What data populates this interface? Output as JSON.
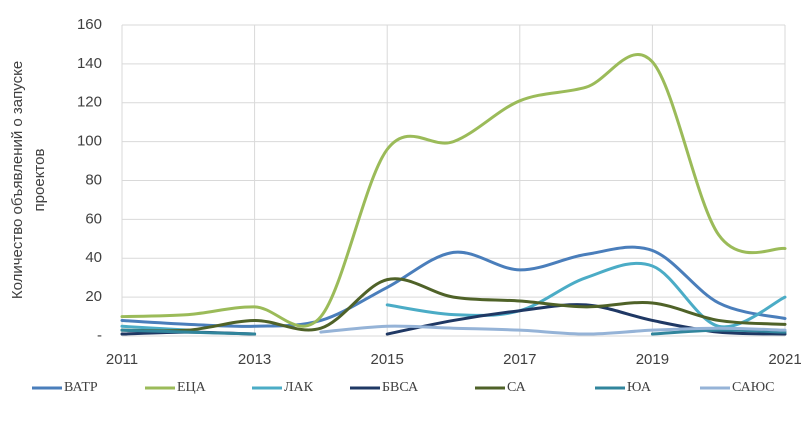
{
  "chart_data": {
    "type": "line",
    "ylabel": [
      "Количество объявлений о запуске",
      "проектов"
    ],
    "x": [
      2011,
      2012,
      2013,
      2014,
      2015,
      2016,
      2017,
      2018,
      2019,
      2020,
      2021
    ],
    "xlim": [
      2011,
      2021
    ],
    "xticks": [
      2011,
      2013,
      2015,
      2017,
      2019,
      2021
    ],
    "ylim": [
      0,
      160
    ],
    "yticks": [
      {
        "value": 0,
        "label": "-"
      },
      20,
      40,
      60,
      80,
      100,
      120,
      140,
      160
    ],
    "grid": true,
    "legend": "bottom",
    "series": [
      {
        "name": "ВАТР",
        "color": "#4a7ebb",
        "values": [
          8,
          6,
          5,
          8,
          25,
          43,
          34,
          42,
          44,
          17,
          9
        ]
      },
      {
        "name": "ЕЦА",
        "color": "#9bbb59",
        "values": [
          10,
          11,
          15,
          10,
          96,
          100,
          121,
          128,
          141,
          52,
          45
        ]
      },
      {
        "name": "ЛАК",
        "color": "#4bacc6",
        "values": [
          5,
          3,
          null,
          null,
          16,
          11,
          13,
          30,
          36,
          5,
          20
        ]
      },
      {
        "name": "БВСА",
        "color": "#1f3864",
        "values": [
          1,
          2,
          1,
          null,
          1,
          8,
          13,
          16,
          8,
          2,
          1
        ]
      },
      {
        "name": "СА",
        "color": "#4f6228",
        "values": [
          3,
          3,
          8,
          4,
          29,
          20,
          18,
          15,
          17,
          8,
          6
        ]
      },
      {
        "name": "ЮА",
        "color": "#31859c",
        "values": [
          3,
          2,
          1,
          null,
          null,
          null,
          null,
          null,
          1,
          3,
          2
        ]
      },
      {
        "name": "САЮС",
        "color": "#95b3d7",
        "values": [
          null,
          null,
          null,
          2,
          5,
          4,
          3,
          1,
          3,
          4,
          3
        ]
      }
    ]
  }
}
